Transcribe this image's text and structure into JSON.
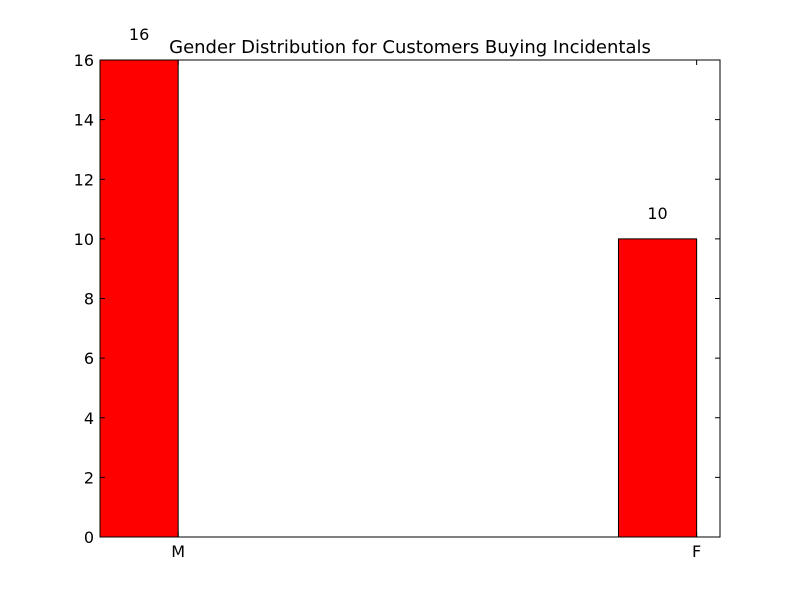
{
  "chart_data": {
    "type": "bar",
    "title": "Gender Distribution for Customers Buying Incidentals",
    "categories": [
      "M",
      "F"
    ],
    "values": [
      16,
      10
    ],
    "data_labels": [
      "16",
      "10"
    ],
    "xlabel": "",
    "ylabel": "",
    "ylim": [
      0,
      16
    ],
    "yticks": [
      "0",
      "2",
      "4",
      "6",
      "8",
      "10",
      "12",
      "14",
      "16"
    ],
    "bar_color": "#ff0000",
    "grid": false,
    "legend": "none"
  }
}
